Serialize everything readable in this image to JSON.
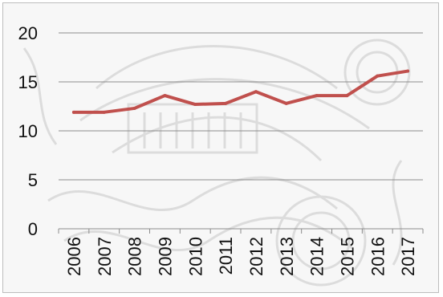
{
  "chart_data": {
    "type": "line",
    "title": "",
    "xlabel": "",
    "ylabel": "",
    "categories": [
      "2006",
      "2007",
      "2008",
      "2009",
      "2010",
      "2011",
      "2012",
      "2013",
      "2014",
      "2015",
      "2016",
      "2017"
    ],
    "series": [
      {
        "values": [
          11.9,
          11.9,
          12.3,
          13.6,
          12.7,
          12.8,
          14.0,
          12.8,
          13.6,
          13.6,
          15.6,
          16.1
        ],
        "color": "#c0504d"
      }
    ],
    "ylim": [
      0,
      20
    ],
    "yticks": [
      "0",
      "5",
      "10",
      "15",
      "20"
    ],
    "grid": true,
    "legend": "none"
  }
}
